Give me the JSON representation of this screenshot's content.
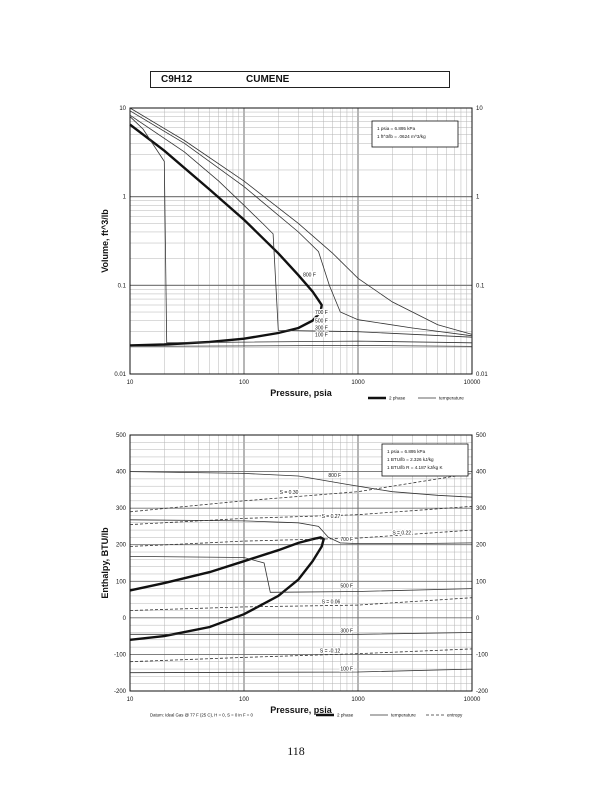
{
  "header": {
    "formula": "C9H12",
    "compound": "CUMENE"
  },
  "page_number": "118",
  "colors": {
    "ink": "#111111",
    "grid": "#6d6d6d",
    "minor_grid": "#b5b5b5"
  },
  "chart_data": [
    {
      "type": "line",
      "title": "",
      "xlabel": "Pressure,  psia",
      "ylabel": "Volume, ft^3/lb",
      "x_scale": "log",
      "y_scale": "log",
      "xlim": [
        10,
        10000
      ],
      "ylim": [
        0.01,
        10
      ],
      "x_ticks": [
        "10",
        "100",
        "1000",
        "10000"
      ],
      "y_ticks_left": [
        "10",
        "1",
        "0.1",
        "0.01"
      ],
      "y_ticks_right": [
        "10",
        "1",
        "0.1",
        "0.01"
      ],
      "grid": true,
      "legend": {
        "position": "bottom-right",
        "entries": [
          "2 phase",
          "temperature"
        ]
      },
      "note_lines": [
        "1 psia  =  6.895 kPa",
        "1 ft^3/lb  =  .0624 m^3/kg"
      ],
      "series": [
        {
          "name": "2 phase",
          "style": "two-phase",
          "points": [
            [
              10,
              6.5
            ],
            [
              20,
              3.3
            ],
            [
              50,
              1.2
            ],
            [
              100,
              0.55
            ],
            [
              200,
              0.23
            ],
            [
              300,
              0.13
            ],
            [
              400,
              0.085
            ],
            [
              450,
              0.068
            ],
            [
              480,
              0.06
            ],
            [
              470,
              0.05
            ],
            [
              400,
              0.04
            ],
            [
              300,
              0.033
            ],
            [
              200,
              0.029
            ],
            [
              100,
              0.025
            ],
            [
              50,
              0.023
            ],
            [
              20,
              0.0215
            ],
            [
              10,
              0.021
            ]
          ]
        },
        {
          "label": "800 F",
          "style": "temperature",
          "points": [
            [
              10,
              10
            ],
            [
              30,
              4.3
            ],
            [
              100,
              1.5
            ],
            [
              300,
              0.5
            ],
            [
              600,
              0.23
            ],
            [
              1000,
              0.12
            ],
            [
              2000,
              0.065
            ],
            [
              5000,
              0.036
            ],
            [
              10000,
              0.028
            ]
          ]
        },
        {
          "label": "700 F",
          "style": "temperature",
          "points": [
            [
              10,
              9.3
            ],
            [
              30,
              4
            ],
            [
              100,
              1.3
            ],
            [
              300,
              0.4
            ],
            [
              450,
              0.24
            ],
            [
              560,
              0.1
            ],
            [
              700,
              0.05
            ],
            [
              1000,
              0.041
            ],
            [
              3000,
              0.033
            ],
            [
              10000,
              0.027
            ]
          ]
        },
        {
          "label": "500 F",
          "style": "temperature",
          "points": [
            [
              10,
              8.3
            ],
            [
              30,
              3.2
            ],
            [
              60,
              1.5
            ],
            [
              100,
              0.8
            ],
            [
              150,
              0.48
            ],
            [
              180,
              0.38
            ],
            [
              200,
              0.031
            ],
            [
              1000,
              0.03
            ],
            [
              10000,
              0.026
            ]
          ]
        },
        {
          "label": "300 F",
          "style": "temperature",
          "points": [
            [
              10,
              8
            ],
            [
              13,
              5.8
            ],
            [
              20,
              2.5
            ],
            [
              21,
              0.0225
            ],
            [
              1000,
              0.0235
            ],
            [
              10000,
              0.0225
            ]
          ]
        },
        {
          "label": "100 F",
          "style": "temperature",
          "points": [
            [
              10,
              0.0205
            ],
            [
              1000,
              0.021
            ],
            [
              10000,
              0.0205
            ]
          ]
        }
      ],
      "annotations": [
        "800 F",
        "700 F",
        "500 F",
        "300 F",
        "100 F"
      ]
    },
    {
      "type": "line",
      "title": "",
      "xlabel": "Pressure,  psia",
      "ylabel": "Enthalpy, BTU/lb",
      "x_scale": "log",
      "y_scale": "linear",
      "xlim": [
        10,
        10000
      ],
      "ylim": [
        -200,
        500
      ],
      "x_ticks": [
        "10",
        "100",
        "1000",
        "10000"
      ],
      "y_ticks_left": [
        "500",
        "400",
        "300",
        "200",
        "100",
        "0",
        "-100",
        "-200"
      ],
      "y_ticks_right": [
        "500",
        "400",
        "300",
        "200",
        "100",
        "0",
        "-100",
        "-200"
      ],
      "grid": true,
      "legend": {
        "position": "bottom-right",
        "entries": [
          "2 phase",
          "temperature",
          "entropy"
        ]
      },
      "note_lines": [
        "1 psia  =  6.895 kPa",
        "1 BTU/lb  =  2.326 kJ/kg",
        "1 BTU/lb R  =  4.187 kJ/kg K"
      ],
      "footnote": "Datum: Ideal Gas @ 77 F (25 C),  H = 0,  S = 0 in F = 0",
      "series": [
        {
          "name": "2 phase",
          "style": "two-phase",
          "points": [
            [
              10,
              75
            ],
            [
              20,
              95
            ],
            [
              50,
              125
            ],
            [
              100,
              155
            ],
            [
              200,
              185
            ],
            [
              300,
              205
            ],
            [
              400,
              215
            ],
            [
              470,
              220
            ],
            [
              500,
              215
            ],
            [
              480,
              195
            ],
            [
              400,
              155
            ],
            [
              300,
              105
            ],
            [
              200,
              60
            ],
            [
              100,
              10
            ],
            [
              50,
              -25
            ],
            [
              20,
              -50
            ],
            [
              10,
              -60
            ]
          ]
        },
        {
          "label": "800 F",
          "style": "temperature",
          "points": [
            [
              10,
              400
            ],
            [
              100,
              395
            ],
            [
              300,
              388
            ],
            [
              800,
              365
            ],
            [
              2000,
              345
            ],
            [
              5000,
              335
            ],
            [
              10000,
              330
            ]
          ]
        },
        {
          "label": "700 F",
          "style": "temperature",
          "points": [
            [
              10,
              268
            ],
            [
              100,
              265
            ],
            [
              300,
              260
            ],
            [
              450,
              250
            ],
            [
              550,
              220
            ],
            [
              700,
              205
            ],
            [
              1000,
              203
            ],
            [
              3000,
              203
            ],
            [
              10000,
              205
            ]
          ]
        },
        {
          "label": "500 F",
          "style": "temperature",
          "points": [
            [
              10,
              168
            ],
            [
              100,
              165
            ],
            [
              150,
              150
            ],
            [
              170,
              70
            ],
            [
              1000,
              72
            ],
            [
              10000,
              80
            ]
          ]
        },
        {
          "label": "300 F",
          "style": "temperature",
          "points": [
            [
              10,
              -45
            ],
            [
              1000,
              -45
            ],
            [
              10000,
              -40
            ]
          ]
        },
        {
          "label": "100 F",
          "style": "temperature",
          "points": [
            [
              10,
              -150
            ],
            [
              1000,
              -148
            ],
            [
              10000,
              -140
            ]
          ]
        },
        {
          "label": "S = 0.30",
          "style": "entropy",
          "points": [
            [
              10,
              290
            ],
            [
              100,
              320
            ],
            [
              1000,
              345
            ],
            [
              10000,
              395
            ]
          ]
        },
        {
          "label": "S = 0.27",
          "style": "entropy",
          "points": [
            [
              10,
              255
            ],
            [
              100,
              272
            ],
            [
              1000,
              282
            ],
            [
              10000,
              305
            ]
          ]
        },
        {
          "label": "S = 0.22",
          "style": "entropy",
          "points": [
            [
              10,
              195
            ],
            [
              100,
              210
            ],
            [
              1000,
              218
            ],
            [
              10000,
              240
            ]
          ]
        },
        {
          "label": "S = 0.06",
          "style": "entropy",
          "points": [
            [
              10,
              20
            ],
            [
              100,
              30
            ],
            [
              1000,
              35
            ],
            [
              10000,
              55
            ]
          ]
        },
        {
          "label": "S = -0.12",
          "style": "entropy",
          "points": [
            [
              10,
              -120
            ],
            [
              100,
              -108
            ],
            [
              1000,
              -98
            ],
            [
              10000,
              -85
            ]
          ]
        }
      ],
      "annotations": [
        "800 F",
        "700 F",
        "500 F",
        "300 F",
        "100 F",
        "S = 0.30",
        "S = 0.27",
        "S = 0.22",
        "S = 0.06",
        "S = -0.12"
      ]
    }
  ]
}
